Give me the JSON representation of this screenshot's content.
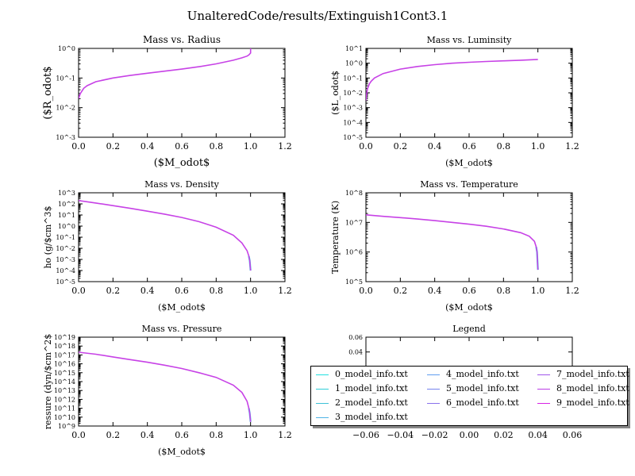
{
  "figure": {
    "title": "UnalteredCode/results/Extinguish1Cont3.1"
  },
  "legend": {
    "entries": [
      {
        "label": "0_model_info.txt",
        "color": "#22e0e0"
      },
      {
        "label": "1_model_info.txt",
        "color": "#30cfd8"
      },
      {
        "label": "2_model_info.txt",
        "color": "#3dc2d8"
      },
      {
        "label": "3_model_info.txt",
        "color": "#4fb4e6"
      },
      {
        "label": "4_model_info.txt",
        "color": "#5f9ef0"
      },
      {
        "label": "5_model_info.txt",
        "color": "#7584ee"
      },
      {
        "label": "6_model_info.txt",
        "color": "#8a72ec"
      },
      {
        "label": "7_model_info.txt",
        "color": "#a056ea"
      },
      {
        "label": "8_model_info.txt",
        "color": "#bb3de6"
      },
      {
        "label": "9_model_info.txt",
        "color": "#d822e4"
      }
    ]
  },
  "chart_data": [
    {
      "type": "line",
      "title": "Mass vs. Radius",
      "xlabel": "($M_odot$",
      "ylabel": "($R_odot$",
      "xlim": [
        0,
        1.2
      ],
      "xticks": [
        0.0,
        0.2,
        0.4,
        0.6,
        0.8,
        1.0,
        1.2
      ],
      "yscale": "log",
      "ylim_exp": [
        -3,
        0
      ],
      "yticklabels": [
        "10^-3",
        "10^-2",
        "10^-1",
        "10^0"
      ],
      "grid": false,
      "series_note": "all 10 series overlap",
      "x": [
        0.0,
        0.01,
        0.03,
        0.05,
        0.1,
        0.2,
        0.3,
        0.4,
        0.5,
        0.6,
        0.7,
        0.8,
        0.9,
        0.95,
        0.98,
        0.99,
        1.0,
        1.0
      ],
      "y": [
        0.02,
        0.03,
        0.045,
        0.055,
        0.075,
        0.1,
        0.122,
        0.145,
        0.17,
        0.2,
        0.24,
        0.3,
        0.4,
        0.48,
        0.55,
        0.6,
        0.7,
        1.0
      ]
    },
    {
      "type": "line",
      "title": "Mass vs. Luminsity",
      "xlabel": "($M_odot$",
      "ylabel": "($L_odot$",
      "xlim": [
        0,
        1.2
      ],
      "xticks": [
        0.0,
        0.2,
        0.4,
        0.6,
        0.8,
        1.0,
        1.2
      ],
      "yscale": "log",
      "ylim_exp": [
        -5,
        1
      ],
      "yticklabels": [
        "10^-5",
        "10^-4",
        "10^-3",
        "10^-2",
        "10^-1",
        "10^0",
        "10^1"
      ],
      "grid": false,
      "series_note": "all 10 series overlap",
      "x": [
        0.0,
        0.005,
        0.01,
        0.02,
        0.03,
        0.05,
        0.1,
        0.2,
        0.3,
        0.4,
        0.5,
        0.6,
        0.7,
        0.8,
        0.9,
        1.0
      ],
      "y": [
        0.003,
        0.01,
        0.02,
        0.04,
        0.06,
        0.1,
        0.2,
        0.4,
        0.6,
        0.8,
        1.0,
        1.15,
        1.3,
        1.45,
        1.6,
        1.8
      ]
    },
    {
      "type": "line",
      "title": "Mass vs. Density",
      "xlabel": "($M_odot$",
      "ylabel": "ho (g/$cm^3$",
      "xlim": [
        0,
        1.2
      ],
      "xticks": [
        0.0,
        0.2,
        0.4,
        0.6,
        0.8,
        1.0,
        1.2
      ],
      "yscale": "log",
      "ylim_exp": [
        -5,
        3
      ],
      "yticklabels": [
        "10^-5",
        "10^-4",
        "10^-3",
        "10^-2",
        "10^-1",
        "10^0",
        "10^1",
        "10^2",
        "10^3"
      ],
      "grid": false,
      "series_note": "all 10 series overlap; curve drops to ~10^-4 at M=1.0",
      "x": [
        0.0,
        0.1,
        0.2,
        0.3,
        0.4,
        0.5,
        0.6,
        0.7,
        0.8,
        0.9,
        0.95,
        0.98,
        0.99,
        0.995,
        1.0
      ],
      "y": [
        200,
        120,
        70,
        40,
        22,
        12,
        6,
        2.5,
        0.8,
        0.15,
        0.03,
        0.006,
        0.002,
        0.0008,
        0.0001
      ]
    },
    {
      "type": "line",
      "title": "Mass vs. Temperature",
      "xlabel": "($M_odot$",
      "ylabel": "Temperature (K)",
      "xlim": [
        0,
        1.2
      ],
      "xticks": [
        0.0,
        0.2,
        0.4,
        0.6,
        0.8,
        1.0,
        1.2
      ],
      "yscale": "log",
      "ylim_exp": [
        5,
        8
      ],
      "yticklabels": [
        "10^5",
        "10^6",
        "10^7",
        "10^8"
      ],
      "grid": false,
      "series_note": "all 10 series overlap; curve drops to ~2.5e5 at M=1.0",
      "x": [
        0.0,
        0.1,
        0.2,
        0.3,
        0.4,
        0.5,
        0.6,
        0.7,
        0.8,
        0.9,
        0.95,
        0.98,
        0.99,
        0.995,
        1.0
      ],
      "y": [
        18000000,
        16000000,
        14500000,
        13000000,
        11500000,
        10000000,
        8700000,
        7400000,
        6000000,
        4500000,
        3400000,
        2300000,
        1500000,
        1000000,
        250000
      ]
    },
    {
      "type": "line",
      "title": "Mass vs. Pressure",
      "xlabel": "($M_odot$",
      "ylabel": "ressure (dyn/$cm^2$",
      "xlim": [
        0,
        1.2
      ],
      "xticks": [
        0.0,
        0.2,
        0.4,
        0.6,
        0.8,
        1.0,
        1.2
      ],
      "yscale": "log",
      "ylim_exp": [
        9,
        19
      ],
      "yticklabels": [
        "10^9",
        "10^10",
        "10^11",
        "10^12",
        "10^13",
        "10^14",
        "10^15",
        "10^16",
        "10^17",
        "10^18",
        "10^19"
      ],
      "grid": false,
      "series_note": "all 10 series overlap; curve drops to ~10^9.5 at M=1.0",
      "x": [
        0.0,
        0.1,
        0.2,
        0.3,
        0.4,
        0.5,
        0.6,
        0.7,
        0.8,
        0.9,
        0.95,
        0.98,
        0.99,
        0.995,
        1.0
      ],
      "y": [
        2e+17,
        1.2e+17,
        6e+16,
        3e+16,
        1.5e+16,
        7000000000000000.0,
        3000000000000000.0,
        1000000000000000.0,
        300000000000000.0,
        40000000000000.0,
        6000000000000.0,
        600000000000.0,
        100000000000.0,
        30000000000.0,
        3000000000.0
      ]
    },
    {
      "type": "line",
      "title": "Legend",
      "xlim": [
        -0.06,
        0.06
      ],
      "xticks": [
        -0.06,
        -0.04,
        -0.02,
        0.0,
        0.02,
        0.04,
        0.06
      ],
      "xticklabels": [
        "−0.06",
        "−0.04",
        "−0.02",
        "0.00",
        "0.02",
        "0.04",
        "0.06"
      ],
      "ylim": [
        -0.06,
        0.06
      ],
      "yticks": [
        -0.06,
        0.04,
        0.06
      ],
      "yticklabels": [
        "−0.06",
        "0.04",
        "0.06"
      ],
      "grid": false,
      "legend_position": "center"
    }
  ]
}
